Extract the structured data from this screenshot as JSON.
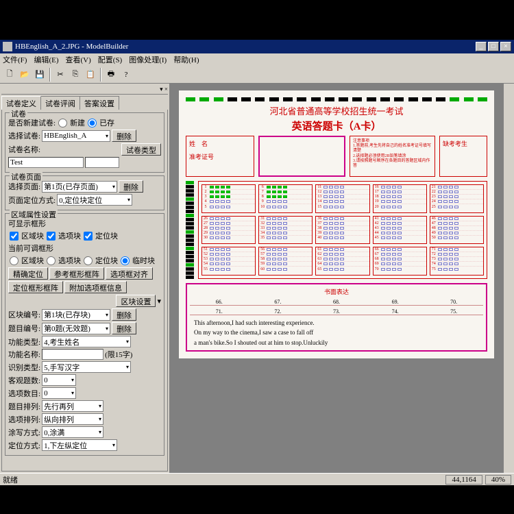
{
  "title": "HBEnglish_A_2.JPG - ModelBuilder",
  "menus": [
    "文件(F)",
    "编辑(E)",
    "查看(V)",
    "配置(S)",
    "图像处理(I)",
    "帮助(H)"
  ],
  "tabs": [
    "试卷定义",
    "试卷评阅",
    "答案设置"
  ],
  "panel": {
    "g1_title": "试卷",
    "new_or_exist": "是否新建试卷:",
    "radio_new": "新建",
    "radio_exist": "已存",
    "select_paper": "选择试卷:",
    "paper_name": "HBEnglish_A",
    "delete": "删除",
    "paper_name_lbl": "试卷名称:",
    "paper_type_lbl": "试卷类型",
    "test_val": "Test",
    "g2_title": "试卷页面",
    "select_page": "选择页面:",
    "page_val": "第1页(已存页面)",
    "page_locate": "页面定位方式:",
    "locate_val": "0,定位块定位",
    "g3_title": "区域属性设置",
    "show_rect": "可显示框形",
    "chk1": "区域块",
    "chk2": "选项块",
    "chk3": "定位块",
    "adj_rect": "当前可调框形",
    "fine_locate": "精确定位",
    "ref_rect": "参考框形框阵",
    "opt_align": "选项框对齐",
    "loc_rect_arr": "定位框形框阵",
    "add_opt": "附加选项框信息",
    "block_set": "区块设置",
    "block_num": "区块编号:",
    "block_num_val": "第1块(已存块)",
    "q_num": "题目编号:",
    "q_num_val": "第0题(无效题)",
    "func_type": "功能类型:",
    "func_type_val": "4,考生姓名",
    "func_name": "功能名称:",
    "func_name_hint": "(限15字)",
    "rec_type": "识别类型:",
    "rec_type_val": "5,手写汉字",
    "obj_cnt": "客观题数:",
    "obj_val": "0",
    "opt_cnt": "选项数目:",
    "opt_val": "0",
    "q_arr": "题目排列:",
    "q_arr_val": "先行再列",
    "opt_arr": "选项排列:",
    "opt_arr_val": "纵向排列",
    "smear": "涂写方式:",
    "smear_val": "0,涂满",
    "loc_mode": "定位方式:",
    "loc_mode_val": "1,下左纵定位"
  },
  "sheet": {
    "title": "河北省普通高等学校招生统一考试",
    "subtitle": "英语答题卡（A卡）",
    "name_lbl": "姓　名",
    "num_lbl": "准考证号",
    "essay_title": "书面表达",
    "hw1": "This afternoon,I had such interesting experience.",
    "hw2": "On my way to the cinema,I saw a case to fall off",
    "hw3": "a man's bike.So I shouted out at him to stop.Unluckily"
  },
  "status": {
    "left": "就绪",
    "coord": "44,1164",
    "zoom": "40%"
  }
}
